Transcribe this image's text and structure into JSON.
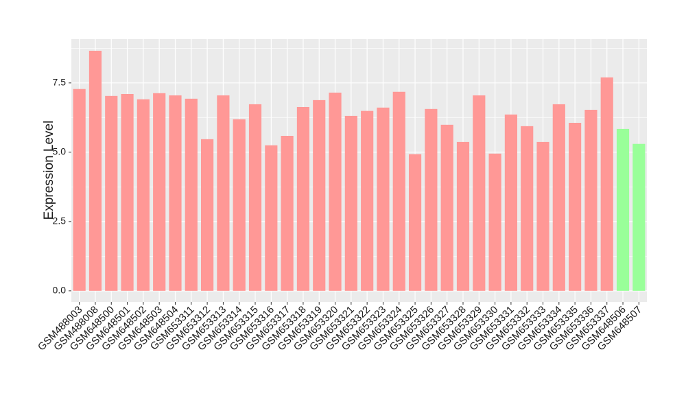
{
  "chart_data": {
    "type": "bar",
    "ylabel": "Expression Level",
    "categories": [
      "GSM488003",
      "GSM488008",
      "GSM648500",
      "GSM648501",
      "GSM648502",
      "GSM648503",
      "GSM648504",
      "GSM653311",
      "GSM653312",
      "GSM653313",
      "GSM653314",
      "GSM653315",
      "GSM653316",
      "GSM653317",
      "GSM653318",
      "GSM653319",
      "GSM653320",
      "GSM653321",
      "GSM653322",
      "GSM653323",
      "GSM653324",
      "GSM653325",
      "GSM653326",
      "GSM653327",
      "GSM653328",
      "GSM653329",
      "GSM653330",
      "GSM653331",
      "GSM653332",
      "GSM653333",
      "GSM653334",
      "GSM653335",
      "GSM653336",
      "GSM653337",
      "GSM648506",
      "GSM648507"
    ],
    "values": [
      7.28,
      8.66,
      7.03,
      7.1,
      6.91,
      7.13,
      7.05,
      6.93,
      5.47,
      7.05,
      6.19,
      6.73,
      5.25,
      5.59,
      6.63,
      6.88,
      7.15,
      6.31,
      6.49,
      6.61,
      7.18,
      4.93,
      6.56,
      5.99,
      5.37,
      7.05,
      4.95,
      6.36,
      5.94,
      5.37,
      6.73,
      6.06,
      6.53,
      7.7,
      5.84,
      5.3
    ],
    "colors": [
      "#ff9896",
      "#ff9896",
      "#ff9896",
      "#ff9896",
      "#ff9896",
      "#ff9896",
      "#ff9896",
      "#ff9896",
      "#ff9896",
      "#ff9896",
      "#ff9896",
      "#ff9896",
      "#ff9896",
      "#ff9896",
      "#ff9896",
      "#ff9896",
      "#ff9896",
      "#ff9896",
      "#ff9896",
      "#ff9896",
      "#ff9896",
      "#ff9896",
      "#ff9896",
      "#ff9896",
      "#ff9896",
      "#ff9896",
      "#ff9896",
      "#ff9896",
      "#ff9896",
      "#ff9896",
      "#ff9896",
      "#ff9896",
      "#ff9896",
      "#ff9896",
      "#99ff99",
      "#99ff99"
    ],
    "ylim": [
      -0.4,
      9.08
    ],
    "yticks": [
      {
        "value": 0,
        "label": "0.0"
      },
      2.5,
      {
        "value": 5,
        "label": "5.0"
      },
      7.5
    ],
    "grid": true
  }
}
